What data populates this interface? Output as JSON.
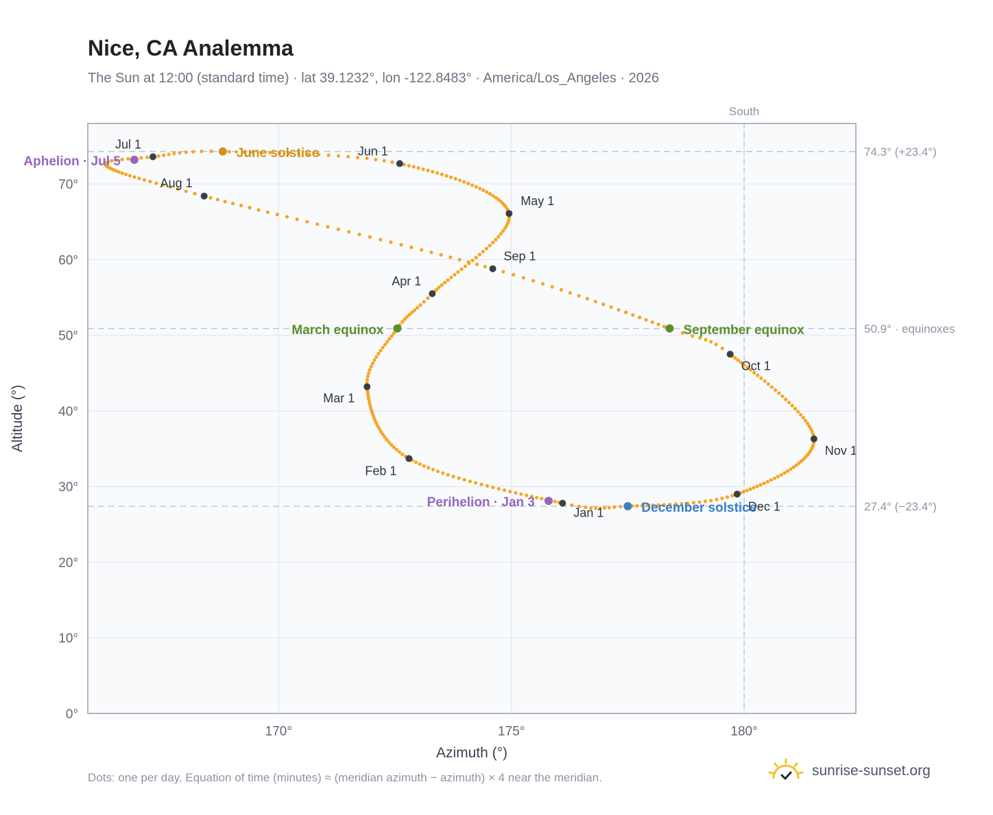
{
  "header": {
    "title": "Nice, CA Analemma",
    "subtitle": "The Sun at 12:00 (standard time) · lat 39.1232°, lon -122.8483° · America/Los_Angeles · 2026"
  },
  "footer": {
    "note": "Dots: one per day. Equation of time (minutes) ≈ (meridian azimuth − azimuth) × 4 near the meridian.",
    "brand": "sunrise-sunset.org",
    "brand_icon": "sun-logo-icon"
  },
  "colors": {
    "path": "#f5a623",
    "month_marker": "#3a3f47",
    "solstice_june": "#d4921c",
    "solstice_december": "#3b7dc4",
    "equinox": "#5b8f2e",
    "apsis": "#9467bd",
    "reference_line": "#b8c4d0",
    "plot_bg": "#f8fafc",
    "axis_text": "#5f6673"
  },
  "chart_data": {
    "type": "scatter",
    "title": "Nice, CA Analemma",
    "xlabel": "Azimuth (°)",
    "ylabel": "Altitude (°)",
    "xlim": [
      165.9,
      182.4
    ],
    "ylim": [
      0,
      78
    ],
    "grid": true,
    "x_ticks": [
      170,
      175,
      180
    ],
    "x_tick_labels": [
      "170°",
      "175°",
      "180°"
    ],
    "y_ticks": [
      0,
      10,
      20,
      30,
      40,
      50,
      60,
      70
    ],
    "y_tick_labels": [
      "0°",
      "10°",
      "20°",
      "30°",
      "40°",
      "50°",
      "60°",
      "70°"
    ],
    "meridian": {
      "azimuth": 180,
      "label": "South"
    },
    "reference_lines": [
      {
        "altitude": 74.3,
        "label": "74.3° (+23.4°)"
      },
      {
        "altitude": 50.9,
        "label": "50.9° · equinoxes"
      },
      {
        "altitude": 27.4,
        "label": "27.4° (−23.4°)"
      }
    ],
    "month_markers": [
      {
        "label": "Jan 1",
        "az": 176.1,
        "alt": 27.8,
        "anchor": "start",
        "dx": 16,
        "dy": 20
      },
      {
        "label": "Feb 1",
        "az": 172.8,
        "alt": 33.7,
        "anchor": "end",
        "dx": -18,
        "dy": 24
      },
      {
        "label": "Mar 1",
        "az": 171.9,
        "alt": 43.2,
        "anchor": "end",
        "dx": -18,
        "dy": 23
      },
      {
        "label": "Apr 1",
        "az": 173.3,
        "alt": 55.5,
        "anchor": "end",
        "dx": -16,
        "dy": -12
      },
      {
        "label": "May 1",
        "az": 174.95,
        "alt": 66.1,
        "anchor": "start",
        "dx": 17,
        "dy": -12
      },
      {
        "label": "Jun 1",
        "az": 172.6,
        "alt": 72.7,
        "anchor": "end",
        "dx": -17,
        "dy": -12
      },
      {
        "label": "Jul 1",
        "az": 167.3,
        "alt": 73.6,
        "anchor": "end",
        "dx": -17,
        "dy": -12
      },
      {
        "label": "Aug 1",
        "az": 168.4,
        "alt": 68.4,
        "anchor": "end",
        "dx": -17,
        "dy": -13
      },
      {
        "label": "Sep 1",
        "az": 174.6,
        "alt": 58.8,
        "anchor": "start",
        "dx": 16,
        "dy": -12
      },
      {
        "label": "Oct 1",
        "az": 179.7,
        "alt": 47.5,
        "anchor": "start",
        "dx": 16,
        "dy": 23
      },
      {
        "label": "Nov 1",
        "az": 181.5,
        "alt": 36.3,
        "anchor": "start",
        "dx": 16,
        "dy": 23
      },
      {
        "label": "Dec 1",
        "az": 179.85,
        "alt": 29.0,
        "anchor": "start",
        "dx": 16,
        "dy": 24
      }
    ],
    "events": [
      {
        "label": "June solstice",
        "kind": "solstice_june",
        "az": 168.8,
        "alt": 74.3,
        "anchor": "start",
        "dx": 20,
        "dy": 8
      },
      {
        "label": "December solstice",
        "kind": "solstice_december",
        "az": 177.5,
        "alt": 27.4,
        "anchor": "start",
        "dx": 20,
        "dy": 8
      },
      {
        "label": "March equinox",
        "kind": "equinox",
        "az": 172.55,
        "alt": 50.9,
        "anchor": "end",
        "dx": -20,
        "dy": 8
      },
      {
        "label": "September equinox",
        "kind": "equinox",
        "az": 178.4,
        "alt": 50.9,
        "anchor": "start",
        "dx": 20,
        "dy": 8
      },
      {
        "label": "Aphelion · Jul 5",
        "kind": "apsis",
        "az": 166.9,
        "alt": 73.2,
        "anchor": "end",
        "dx": -20,
        "dy": 8
      },
      {
        "label": "Perihelion · Jan 3",
        "kind": "apsis",
        "az": 175.8,
        "alt": 28.1,
        "anchor": "end",
        "dx": -20,
        "dy": 8
      }
    ],
    "path_keypoints": [
      {
        "day": 0,
        "az": 176.1,
        "alt": 27.8
      },
      {
        "day": 31,
        "az": 172.8,
        "alt": 33.7
      },
      {
        "day": 59,
        "az": 171.9,
        "alt": 43.2
      },
      {
        "day": 78,
        "az": 172.55,
        "alt": 50.9
      },
      {
        "day": 90,
        "az": 173.3,
        "alt": 55.5
      },
      {
        "day": 120,
        "az": 174.95,
        "alt": 66.1
      },
      {
        "day": 151,
        "az": 172.6,
        "alt": 72.7
      },
      {
        "day": 171,
        "az": 168.8,
        "alt": 74.3
      },
      {
        "day": 181,
        "az": 167.3,
        "alt": 73.6
      },
      {
        "day": 192,
        "az": 166.3,
        "alt": 72.4
      },
      {
        "day": 212,
        "az": 168.4,
        "alt": 68.4
      },
      {
        "day": 243,
        "az": 174.6,
        "alt": 58.8
      },
      {
        "day": 265,
        "az": 178.4,
        "alt": 50.9
      },
      {
        "day": 273,
        "az": 179.7,
        "alt": 47.5
      },
      {
        "day": 304,
        "az": 181.5,
        "alt": 36.3
      },
      {
        "day": 334,
        "az": 179.85,
        "alt": 29.0
      },
      {
        "day": 354,
        "az": 177.5,
        "alt": 27.4
      },
      {
        "day": 365,
        "az": 176.1,
        "alt": 27.8
      }
    ]
  }
}
